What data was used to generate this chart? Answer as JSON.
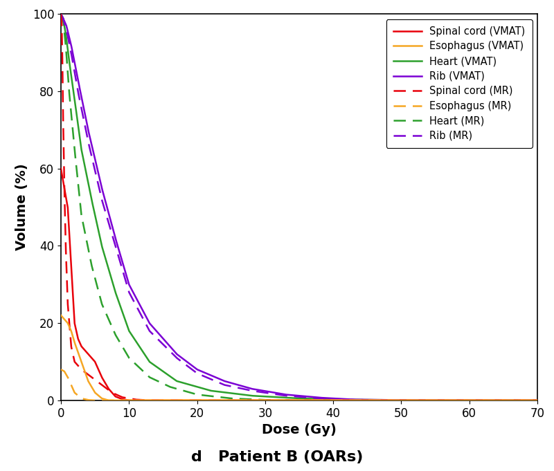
{
  "title": "d   Patient B (OARs)",
  "xlabel": "Dose (Gy)",
  "ylabel": "Volume (%)",
  "xlim": [
    0,
    70
  ],
  "ylim": [
    0,
    100
  ],
  "xticks": [
    0,
    10,
    20,
    30,
    40,
    50,
    60,
    70
  ],
  "yticks": [
    0,
    20,
    40,
    60,
    80,
    100
  ],
  "colors": {
    "spinal_cord": "#e8000a",
    "esophagus": "#f5a623",
    "heart": "#2ca02c",
    "rib": "#7b00d4"
  },
  "legend_entries": [
    {
      "label": "Spinal cord (VMAT)",
      "color": "#e8000a",
      "linestyle": "solid"
    },
    {
      "label": "Esophagus (VMAT)",
      "color": "#f5a623",
      "linestyle": "solid"
    },
    {
      "label": "Heart (VMAT)",
      "color": "#2ca02c",
      "linestyle": "solid"
    },
    {
      "label": "Rib (VMAT)",
      "color": "#7b00d4",
      "linestyle": "solid"
    },
    {
      "label": "Spinal cord (MR)",
      "color": "#e8000a",
      "linestyle": "dashed"
    },
    {
      "label": "Esophagus (MR)",
      "color": "#f5a623",
      "linestyle": "dashed"
    },
    {
      "label": "Heart (MR)",
      "color": "#2ca02c",
      "linestyle": "dashed"
    },
    {
      "label": "Rib (MR)",
      "color": "#7b00d4",
      "linestyle": "dashed"
    }
  ],
  "background_color": "#ffffff",
  "linewidth": 1.8,
  "sc_vmat": [
    [
      0,
      60
    ],
    [
      0.5,
      55
    ],
    [
      1.0,
      50
    ],
    [
      1.5,
      35
    ],
    [
      2.0,
      20
    ],
    [
      2.5,
      16
    ],
    [
      3.0,
      14
    ],
    [
      4.0,
      12
    ],
    [
      5.0,
      10
    ],
    [
      6.0,
      6
    ],
    [
      7.0,
      3
    ],
    [
      8.0,
      1
    ],
    [
      9.0,
      0.3
    ],
    [
      10.0,
      0
    ],
    [
      70,
      0
    ]
  ],
  "eso_vmat": [
    [
      0,
      22
    ],
    [
      0.5,
      21
    ],
    [
      1.0,
      20
    ],
    [
      1.5,
      18
    ],
    [
      2.0,
      15
    ],
    [
      3.0,
      10
    ],
    [
      4.0,
      5
    ],
    [
      5.0,
      2
    ],
    [
      6.0,
      0.5
    ],
    [
      7.0,
      0
    ],
    [
      70,
      0
    ]
  ],
  "heart_vmat": [
    [
      0,
      100
    ],
    [
      0.3,
      99
    ],
    [
      0.7,
      95
    ],
    [
      1.2,
      88
    ],
    [
      2.0,
      78
    ],
    [
      3.0,
      65
    ],
    [
      4.5,
      52
    ],
    [
      6.0,
      40
    ],
    [
      8.0,
      28
    ],
    [
      10.0,
      18
    ],
    [
      13.0,
      10
    ],
    [
      17.0,
      5
    ],
    [
      22.0,
      2.5
    ],
    [
      28.0,
      1.2
    ],
    [
      35.0,
      0.5
    ],
    [
      42.0,
      0.2
    ],
    [
      50.0,
      0.05
    ],
    [
      60,
      0
    ],
    [
      70,
      0
    ]
  ],
  "rib_vmat": [
    [
      0,
      100
    ],
    [
      0.3,
      99
    ],
    [
      0.8,
      97
    ],
    [
      1.5,
      92
    ],
    [
      2.5,
      83
    ],
    [
      4.0,
      70
    ],
    [
      6.0,
      55
    ],
    [
      8.0,
      42
    ],
    [
      10.0,
      30
    ],
    [
      13.0,
      20
    ],
    [
      17.0,
      12
    ],
    [
      20.0,
      8
    ],
    [
      24.0,
      5
    ],
    [
      28.0,
      3
    ],
    [
      33.0,
      1.5
    ],
    [
      38.0,
      0.7
    ],
    [
      43.0,
      0.2
    ],
    [
      50.0,
      0.05
    ],
    [
      60,
      0
    ],
    [
      70,
      0
    ]
  ],
  "sc_mr": [
    [
      0,
      100
    ],
    [
      0.1,
      98
    ],
    [
      0.2,
      90
    ],
    [
      0.3,
      75
    ],
    [
      0.5,
      55
    ],
    [
      0.7,
      40
    ],
    [
      1.0,
      25
    ],
    [
      1.5,
      14
    ],
    [
      2.0,
      10
    ],
    [
      3.0,
      8
    ],
    [
      4.5,
      6
    ],
    [
      6.0,
      4
    ],
    [
      7.5,
      2
    ],
    [
      9.0,
      0.8
    ],
    [
      11.0,
      0.2
    ],
    [
      13.0,
      0
    ],
    [
      70,
      0
    ]
  ],
  "eso_mr": [
    [
      0,
      8
    ],
    [
      0.5,
      7.5
    ],
    [
      1.0,
      6
    ],
    [
      1.5,
      4
    ],
    [
      2.0,
      2
    ],
    [
      3.0,
      0.5
    ],
    [
      4.0,
      0.1
    ],
    [
      5.0,
      0
    ],
    [
      70,
      0
    ]
  ],
  "heart_mr": [
    [
      0,
      100
    ],
    [
      0.3,
      99
    ],
    [
      0.7,
      92
    ],
    [
      1.2,
      80
    ],
    [
      2.0,
      65
    ],
    [
      3.0,
      48
    ],
    [
      4.5,
      35
    ],
    [
      6.0,
      25
    ],
    [
      8.0,
      17
    ],
    [
      10.0,
      11
    ],
    [
      13.0,
      6
    ],
    [
      16.0,
      3.5
    ],
    [
      20.0,
      1.5
    ],
    [
      25.0,
      0.5
    ],
    [
      30.0,
      0.1
    ],
    [
      35.0,
      0
    ],
    [
      70,
      0
    ]
  ],
  "rib_mr": [
    [
      0,
      100
    ],
    [
      0.3,
      99
    ],
    [
      0.8,
      96
    ],
    [
      1.5,
      90
    ],
    [
      2.5,
      80
    ],
    [
      4.0,
      67
    ],
    [
      6.0,
      52
    ],
    [
      8.0,
      40
    ],
    [
      10.0,
      28
    ],
    [
      13.0,
      18
    ],
    [
      17.0,
      11
    ],
    [
      20.0,
      7
    ],
    [
      24.0,
      4
    ],
    [
      28.0,
      2.5
    ],
    [
      33.0,
      1.2
    ],
    [
      38.0,
      0.5
    ],
    [
      43.0,
      0.15
    ],
    [
      50.0,
      0.03
    ],
    [
      60,
      0
    ],
    [
      70,
      0
    ]
  ]
}
